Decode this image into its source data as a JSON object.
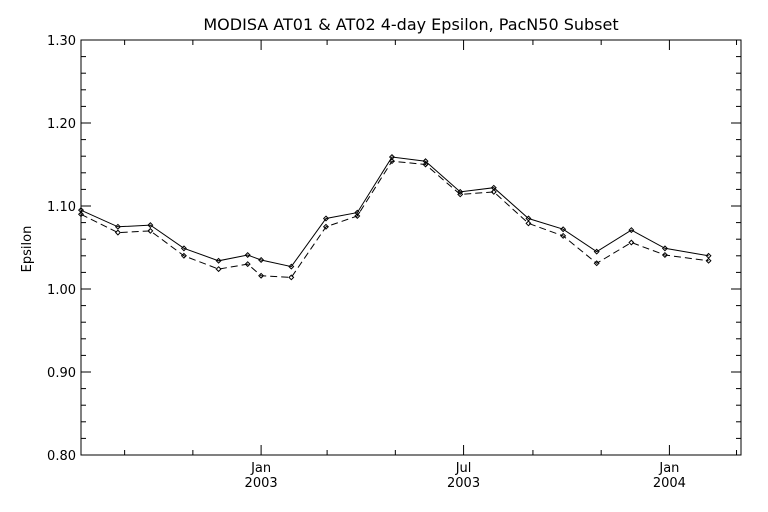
{
  "chart_data": {
    "type": "line",
    "title": "MODISA AT01 & AT02 4-day Epsilon, PacN50 Subset",
    "xlabel": "",
    "ylabel": "Epsilon",
    "ylim": [
      0.8,
      1.3
    ],
    "yticks": [
      0.8,
      0.9,
      1.0,
      1.1,
      1.2,
      1.3
    ],
    "ytick_labels": [
      "0.80",
      "0.90",
      "1.00",
      "1.10",
      "1.20",
      "1.30"
    ],
    "xlim": [
      "2002-07-24",
      "2004-03-05"
    ],
    "x_major_ticks": [
      {
        "date": "2003-01-01",
        "label_top": "Jan",
        "label_bottom": "2003"
      },
      {
        "date": "2003-07-01",
        "label_top": "Jul",
        "label_bottom": "2003"
      },
      {
        "date": "2004-01-01",
        "label_top": "Jan",
        "label_bottom": "2004"
      }
    ],
    "x_minor_ticks": [
      "2002-09-01",
      "2002-11-01",
      "2003-03-01",
      "2003-05-01",
      "2003-09-01",
      "2003-11-01",
      "2004-03-01"
    ],
    "grid": false,
    "series": [
      {
        "line_style": "solid",
        "color": "#000000",
        "x": [
          "2002-07-24",
          "2002-08-26",
          "2002-09-24",
          "2002-10-24",
          "2002-11-24",
          "2002-12-20",
          "2003-01-01",
          "2003-01-28",
          "2003-02-28",
          "2003-03-28",
          "2003-04-28",
          "2003-05-28",
          "2003-06-28",
          "2003-07-28",
          "2003-08-28",
          "2003-09-28",
          "2003-10-28",
          "2003-11-28",
          "2003-12-28",
          "2004-02-05"
        ],
        "values": [
          1.095,
          1.075,
          1.077,
          1.049,
          1.034,
          1.041,
          1.035,
          1.027,
          1.085,
          1.092,
          1.159,
          1.154,
          1.117,
          1.122,
          1.085,
          1.072,
          1.045,
          1.071,
          1.049,
          1.04
        ]
      },
      {
        "line_style": "dashed",
        "color": "#000000",
        "x": [
          "2002-07-24",
          "2002-08-26",
          "2002-09-24",
          "2002-10-24",
          "2002-11-24",
          "2002-12-20",
          "2003-01-01",
          "2003-01-28",
          "2003-02-28",
          "2003-03-28",
          "2003-04-28",
          "2003-05-28",
          "2003-06-28",
          "2003-07-28",
          "2003-08-28",
          "2003-09-28",
          "2003-10-28",
          "2003-11-28",
          "2003-12-28",
          "2004-02-05"
        ],
        "values": [
          1.09,
          1.068,
          1.07,
          1.04,
          1.024,
          1.03,
          1.016,
          1.014,
          1.075,
          1.088,
          1.154,
          1.15,
          1.114,
          1.117,
          1.079,
          1.064,
          1.031,
          1.056,
          1.041,
          1.034
        ]
      }
    ]
  }
}
